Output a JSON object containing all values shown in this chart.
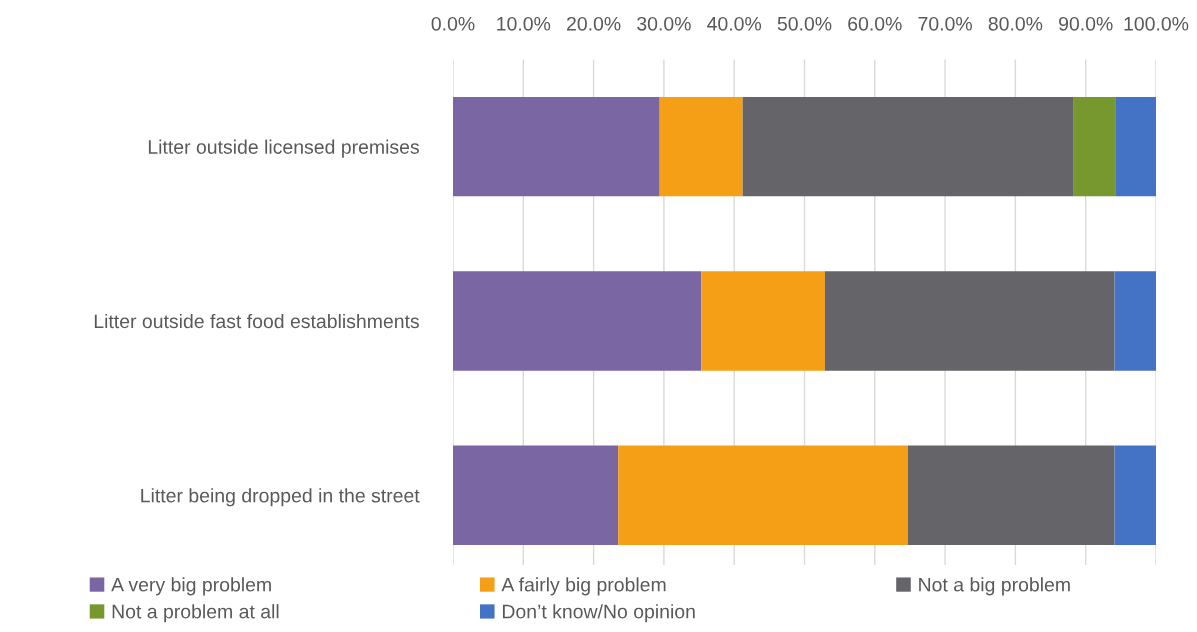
{
  "chart_data": {
    "type": "bar",
    "orientation": "horizontal",
    "stacked": true,
    "categories": [
      "Litter outside licensed premises",
      "Litter outside fast food establishments",
      "Litter being dropped in the street"
    ],
    "series": [
      {
        "name": "A very big problem",
        "color": "#7a66a2",
        "values": [
          29.4,
          35.3,
          23.5
        ]
      },
      {
        "name": "A fairly big problem",
        "color": "#f59f17",
        "values": [
          11.8,
          17.6,
          41.2
        ]
      },
      {
        "name": "Not a big problem",
        "color": "#656569",
        "values": [
          47.1,
          41.2,
          29.4
        ]
      },
      {
        "name": "Not a problem at all",
        "color": "#77982e",
        "values": [
          5.9,
          null,
          null
        ]
      },
      {
        "name": "Don’t know/No opinion",
        "color": "#4472c4",
        "values": [
          5.9,
          5.9,
          5.9
        ]
      }
    ],
    "xlim": [
      0,
      100
    ],
    "xticks": [
      {
        "value": 0,
        "label": "0.0%"
      },
      {
        "value": 10,
        "label": "10.0%"
      },
      {
        "value": 20,
        "label": "20.0%"
      },
      {
        "value": 30,
        "label": "30.0%"
      },
      {
        "value": 40,
        "label": "40.0%"
      },
      {
        "value": 50,
        "label": "50.0%"
      },
      {
        "value": 60,
        "label": "60.0%"
      },
      {
        "value": 70,
        "label": "70.0%"
      },
      {
        "value": 80,
        "label": "80.0%"
      },
      {
        "value": 90,
        "label": "90.0%"
      },
      {
        "value": 100,
        "label": "100.0%"
      }
    ],
    "grid": "x",
    "legend": "bottom"
  }
}
